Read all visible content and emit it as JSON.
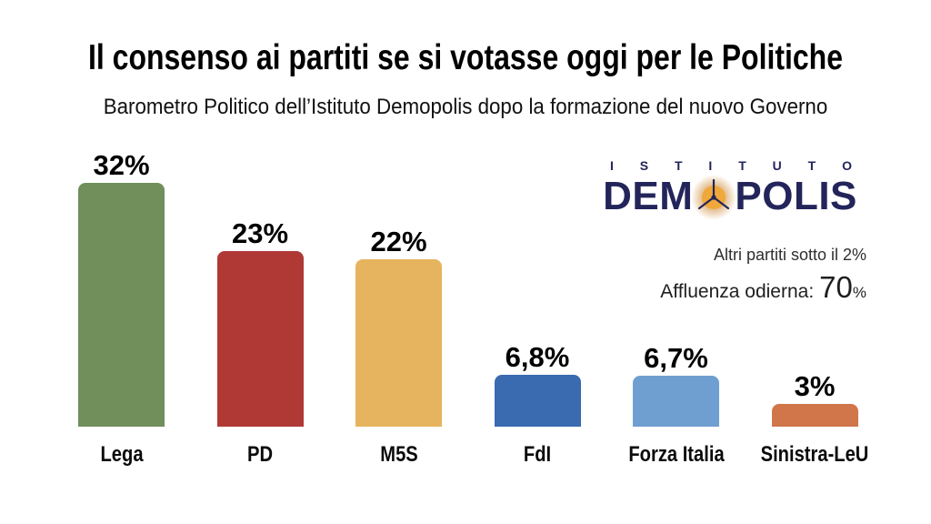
{
  "header": {
    "title": "Il consenso ai partiti se si votasse oggi per le Politiche",
    "subtitle": "Barometro Politico dell’Istituto Demopolis dopo la formazione del nuovo Governo"
  },
  "logo": {
    "full_name": "ISTITUTO DEMOPOLIS",
    "istituto": "ISTITUTO",
    "demopolis_prefix": "DEM",
    "demopolis_suffix": "POLIS",
    "navy": "#23255a",
    "orange": "#f0a83a",
    "glow": "#dcae74"
  },
  "notes": {
    "other_parties": "Altri partiti sotto il 2%",
    "turnout_label": "Affluenza odierna:",
    "turnout_value": "70",
    "turnout_unit": "%"
  },
  "chart_data": {
    "type": "bar",
    "title": "Il consenso ai partiti se si votasse oggi per le Politiche",
    "subtitle": "Barometro Politico dell’Istituto Demopolis dopo la formazione del nuovo Governo",
    "categories": [
      "Lega",
      "PD",
      "M5S",
      "FdI",
      "Forza Italia",
      "Sinistra-LeU"
    ],
    "values": [
      32,
      23,
      22,
      6.8,
      6.7,
      3
    ],
    "value_labels": [
      "32%",
      "23%",
      "22%",
      "6,8%",
      "6,7%",
      "3%"
    ],
    "colors": [
      "#708f5b",
      "#b03936",
      "#e6b45e",
      "#3a6ab0",
      "#6f9fd0",
      "#d0764a"
    ],
    "xlabel": "",
    "ylabel": "",
    "ylim": [
      0,
      35
    ],
    "grid": false,
    "legend": false
  }
}
